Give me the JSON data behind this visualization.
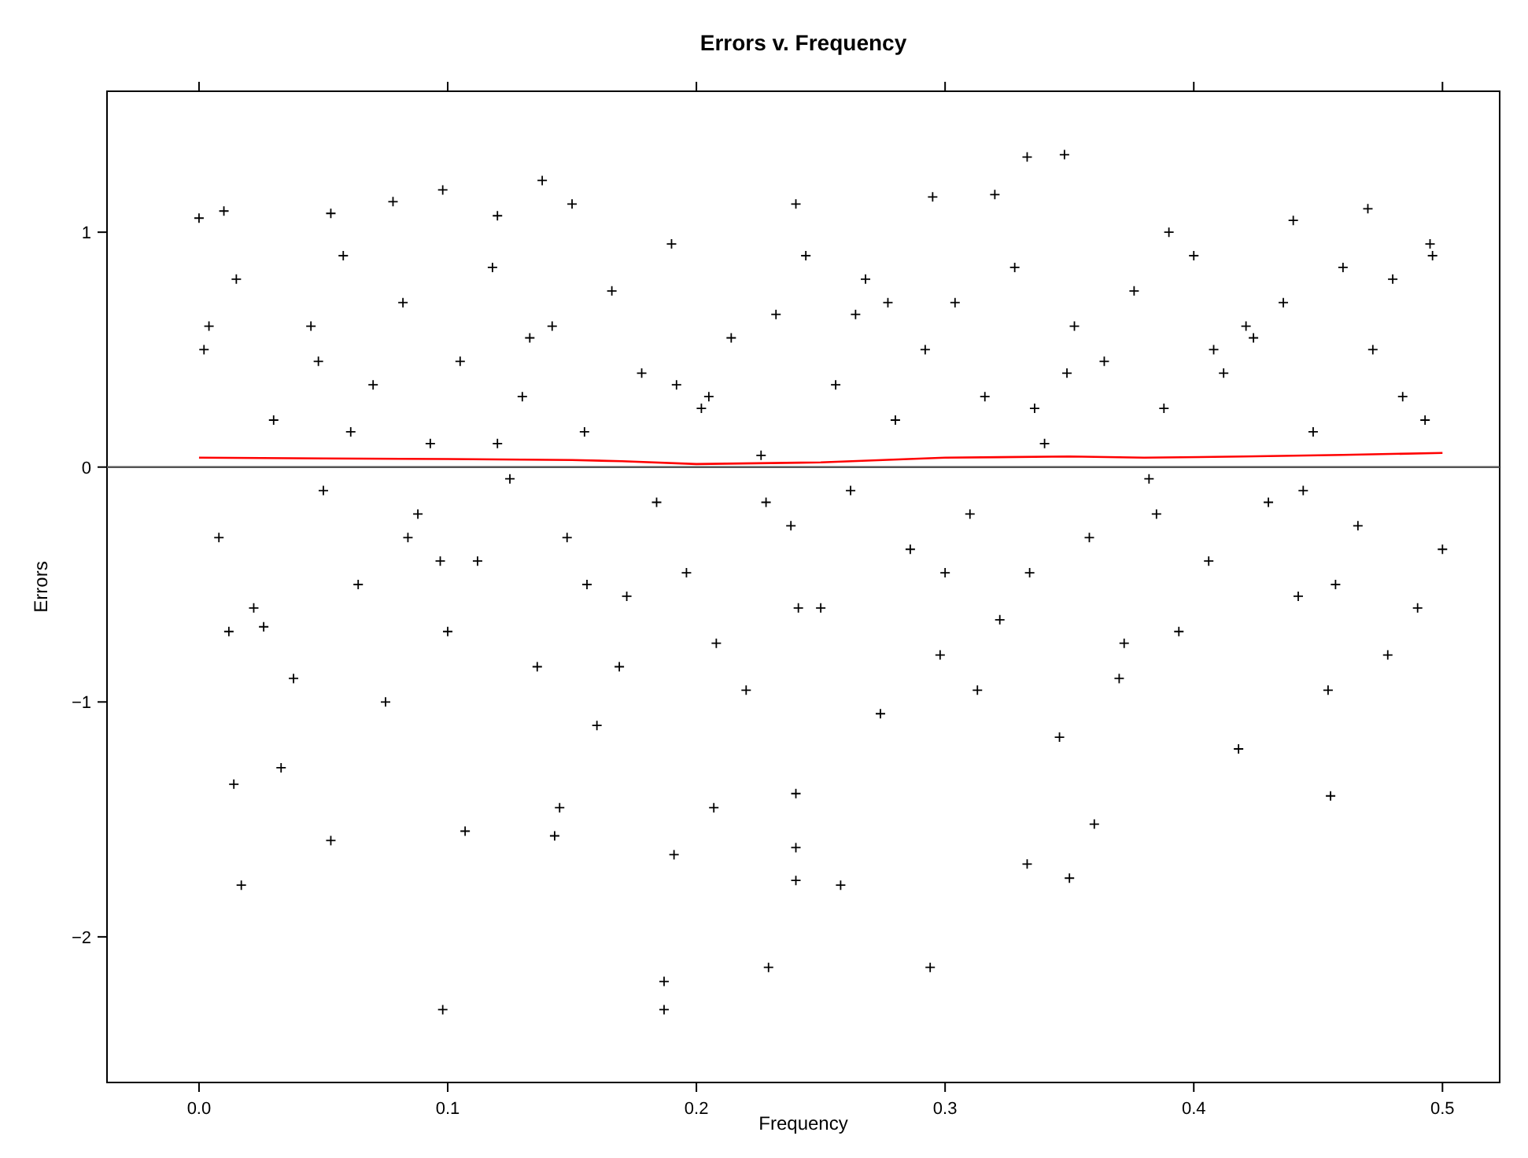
{
  "chart_data": {
    "type": "scatter",
    "title": "Errors v. Frequency",
    "xlabel": "Frequency",
    "ylabel": "Errors",
    "xlim": [
      -0.037,
      0.523
    ],
    "xticks": [
      {
        "value": 0,
        "label": "0.0"
      },
      0.1,
      0.2,
      0.3,
      0.4,
      0.5
    ],
    "ylim": [
      -2.62,
      1.6
    ],
    "yticks": [
      {
        "value": -2,
        "label": "−2"
      },
      {
        "value": -1,
        "label": "−1"
      },
      0,
      1
    ],
    "grid": false,
    "marker": "cross",
    "ref_lines": [
      {
        "axis": "y",
        "value": 0,
        "color": "#555555"
      }
    ],
    "series": [
      {
        "color": "#000000",
        "x": [
          0.098,
          0.187,
          0.187,
          0.229,
          0.294,
          0.017,
          0.053,
          0.107,
          0.191,
          0.258,
          0.333,
          0.35,
          0.24,
          0.24,
          0.36,
          0.014,
          0.033,
          0.143,
          0.145,
          0.207,
          0.24,
          0.455,
          0.348,
          0.333,
          0.138,
          0.098,
          0.295,
          0.32,
          0.24,
          0.15,
          0.0,
          0.01,
          0.053,
          0.078,
          0.12,
          0.44,
          0.47,
          0.39,
          0.495,
          0.002,
          0.008,
          0.015,
          0.022,
          0.03,
          0.038,
          0.045,
          0.05,
          0.058,
          0.064,
          0.07,
          0.075,
          0.082,
          0.088,
          0.093,
          0.1,
          0.105,
          0.112,
          0.118,
          0.125,
          0.13,
          0.136,
          0.142,
          0.148,
          0.155,
          0.16,
          0.166,
          0.172,
          0.178,
          0.184,
          0.19,
          0.196,
          0.202,
          0.208,
          0.214,
          0.22,
          0.226,
          0.232,
          0.238,
          0.244,
          0.25,
          0.256,
          0.262,
          0.268,
          0.274,
          0.28,
          0.286,
          0.292,
          0.298,
          0.304,
          0.31,
          0.316,
          0.322,
          0.328,
          0.334,
          0.34,
          0.346,
          0.352,
          0.358,
          0.364,
          0.37,
          0.376,
          0.382,
          0.388,
          0.394,
          0.4,
          0.406,
          0.412,
          0.418,
          0.424,
          0.43,
          0.436,
          0.442,
          0.448,
          0.454,
          0.46,
          0.466,
          0.472,
          0.478,
          0.484,
          0.49,
          0.496,
          0.5,
          0.004,
          0.026,
          0.061,
          0.097,
          0.133,
          0.169,
          0.205,
          0.241,
          0.277,
          0.313,
          0.349,
          0.385,
          0.421,
          0.457,
          0.493,
          0.012,
          0.048,
          0.084,
          0.12,
          0.156,
          0.192,
          0.228,
          0.264,
          0.3,
          0.336,
          0.372,
          0.408,
          0.444,
          0.48
        ],
        "values": [
          -2.31,
          -2.19,
          -2.31,
          -2.13,
          -2.13,
          -1.78,
          -1.59,
          -1.55,
          -1.65,
          -1.78,
          -1.69,
          -1.75,
          -1.62,
          -1.76,
          -1.52,
          -1.35,
          -1.28,
          -1.57,
          -1.45,
          -1.45,
          -1.39,
          -1.4,
          1.33,
          1.32,
          1.22,
          1.18,
          1.15,
          1.16,
          1.12,
          1.12,
          1.06,
          1.09,
          1.08,
          1.13,
          1.07,
          1.05,
          1.1,
          1.0,
          0.95,
          0.5,
          -0.3,
          0.8,
          -0.6,
          0.2,
          -0.9,
          0.6,
          -0.1,
          0.9,
          -0.5,
          0.35,
          -1.0,
          0.7,
          -0.2,
          0.1,
          -0.7,
          0.45,
          -0.4,
          0.85,
          -0.05,
          0.3,
          -0.85,
          0.6,
          -0.3,
          0.15,
          -1.1,
          0.75,
          -0.55,
          0.4,
          -0.15,
          0.95,
          -0.45,
          0.25,
          -0.75,
          0.55,
          -0.95,
          0.05,
          0.65,
          -0.25,
          0.9,
          -0.6,
          0.35,
          -0.1,
          0.8,
          -1.05,
          0.2,
          -0.35,
          0.5,
          -0.8,
          0.7,
          -0.2,
          0.3,
          -0.65,
          0.85,
          -0.45,
          0.1,
          -1.15,
          0.6,
          -0.3,
          0.45,
          -0.9,
          0.75,
          -0.05,
          0.25,
          -0.7,
          0.9,
          -0.4,
          0.4,
          -1.2,
          0.55,
          -0.15,
          0.7,
          -0.55,
          0.15,
          -0.95,
          0.85,
          -0.25,
          0.5,
          -0.8,
          0.3,
          -0.6,
          0.9,
          -0.35,
          0.6,
          -0.68,
          0.15,
          -0.4,
          0.55,
          -0.85,
          0.3,
          -0.6,
          0.7,
          -0.95,
          0.4,
          -0.2,
          0.6,
          -0.5,
          0.2,
          -0.7,
          0.45,
          -0.3,
          0.1,
          -0.5,
          0.35,
          -0.15,
          0.65,
          -0.45,
          0.25,
          -0.75,
          0.5,
          -0.1,
          0.8
        ]
      },
      {
        "type": "line",
        "color": "#ff0000",
        "marker": "none",
        "x": [
          0,
          0.05,
          0.1,
          0.15,
          0.17,
          0.2,
          0.25,
          0.3,
          0.35,
          0.38,
          0.42,
          0.46,
          0.5
        ],
        "values": [
          0.04,
          0.037,
          0.034,
          0.03,
          0.025,
          0.013,
          0.02,
          0.04,
          0.045,
          0.04,
          0.045,
          0.052,
          0.06
        ]
      }
    ]
  }
}
